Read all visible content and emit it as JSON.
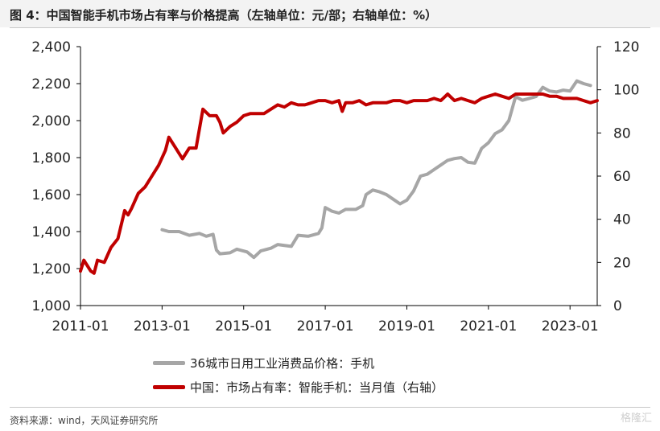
{
  "title": "图 4：中国智能手机市场占有率与价格提高（左轴单位：元/部；右轴单位：%）",
  "source": "资料来源：wind，天风证券研究所",
  "watermark": "格隆汇",
  "colors": {
    "gray_series": "#a6a6a6",
    "red_series": "#c00000"
  },
  "legend": {
    "gray_label": "36城市日用工业消费品价格：手机",
    "red_label": "中国：市场占有率：智能手机：当月值（右轴）"
  },
  "chart_data": {
    "type": "line",
    "x_tick_labels": [
      "2011-01",
      "2013-01",
      "2015-01",
      "2017-01",
      "2019-01",
      "2021-01",
      "2023-01"
    ],
    "y_left": {
      "ticks": [
        "1,000",
        "1,200",
        "1,400",
        "1,600",
        "1,800",
        "2,000",
        "2,200",
        "2,400"
      ],
      "ylim": [
        1000,
        2400
      ]
    },
    "y_right": {
      "ticks": [
        "0",
        "20",
        "40",
        "60",
        "80",
        "100",
        "120"
      ],
      "ylim": [
        0,
        120
      ]
    },
    "xlim": [
      "2011-01",
      "2023-09"
    ],
    "grid": false,
    "series": [
      {
        "name": "36城市日用工业消费品价格：手机",
        "axis": "left",
        "points": [
          [
            "2013-01",
            1410
          ],
          [
            "2013-03",
            1400
          ],
          [
            "2013-06",
            1400
          ],
          [
            "2013-09",
            1380
          ],
          [
            "2013-12",
            1390
          ],
          [
            "2014-02",
            1375
          ],
          [
            "2014-04",
            1385
          ],
          [
            "2014-05",
            1300
          ],
          [
            "2014-06",
            1280
          ],
          [
            "2014-09",
            1285
          ],
          [
            "2014-11",
            1305
          ],
          [
            "2015-02",
            1290
          ],
          [
            "2015-04",
            1260
          ],
          [
            "2015-06",
            1295
          ],
          [
            "2015-09",
            1310
          ],
          [
            "2015-11",
            1330
          ],
          [
            "2016-03",
            1320
          ],
          [
            "2016-05",
            1380
          ],
          [
            "2016-08",
            1375
          ],
          [
            "2016-11",
            1390
          ],
          [
            "2016-12",
            1420
          ],
          [
            "2017-01",
            1530
          ],
          [
            "2017-03",
            1510
          ],
          [
            "2017-05",
            1500
          ],
          [
            "2017-07",
            1520
          ],
          [
            "2017-10",
            1520
          ],
          [
            "2017-12",
            1540
          ],
          [
            "2018-01",
            1600
          ],
          [
            "2018-03",
            1625
          ],
          [
            "2018-05",
            1615
          ],
          [
            "2018-07",
            1600
          ],
          [
            "2018-09",
            1575
          ],
          [
            "2018-11",
            1550
          ],
          [
            "2019-01",
            1570
          ],
          [
            "2019-03",
            1620
          ],
          [
            "2019-05",
            1700
          ],
          [
            "2019-07",
            1710
          ],
          [
            "2019-09",
            1735
          ],
          [
            "2019-11",
            1760
          ],
          [
            "2020-01",
            1785
          ],
          [
            "2020-03",
            1795
          ],
          [
            "2020-05",
            1800
          ],
          [
            "2020-07",
            1775
          ],
          [
            "2020-09",
            1770
          ],
          [
            "2020-11",
            1850
          ],
          [
            "2021-01",
            1880
          ],
          [
            "2021-03",
            1930
          ],
          [
            "2021-05",
            1950
          ],
          [
            "2021-07",
            2000
          ],
          [
            "2021-09",
            2130
          ],
          [
            "2021-11",
            2110
          ],
          [
            "2022-01",
            2120
          ],
          [
            "2022-03",
            2130
          ],
          [
            "2022-05",
            2180
          ],
          [
            "2022-07",
            2160
          ],
          [
            "2022-09",
            2155
          ],
          [
            "2022-11",
            2165
          ],
          [
            "2023-01",
            2160
          ],
          [
            "2023-03",
            2215
          ],
          [
            "2023-05",
            2200
          ],
          [
            "2023-07",
            2190
          ]
        ]
      },
      {
        "name": "中国：市场占有率：智能手机：当月值（右轴）",
        "axis": "right",
        "points": [
          [
            "2011-01",
            16
          ],
          [
            "2011-02",
            21
          ],
          [
            "2011-04",
            16
          ],
          [
            "2011-05",
            15
          ],
          [
            "2011-06",
            21
          ],
          [
            "2011-08",
            20
          ],
          [
            "2011-10",
            27
          ],
          [
            "2011-12",
            31
          ],
          [
            "2012-02",
            44
          ],
          [
            "2012-03",
            42
          ],
          [
            "2012-04",
            45
          ],
          [
            "2012-06",
            52
          ],
          [
            "2012-08",
            55
          ],
          [
            "2012-10",
            60
          ],
          [
            "2012-12",
            65
          ],
          [
            "2013-02",
            72
          ],
          [
            "2013-03",
            78
          ],
          [
            "2013-05",
            73
          ],
          [
            "2013-07",
            68
          ],
          [
            "2013-09",
            73
          ],
          [
            "2013-11",
            73
          ],
          [
            "2014-01",
            91
          ],
          [
            "2014-03",
            88
          ],
          [
            "2014-05",
            88
          ],
          [
            "2014-06",
            85
          ],
          [
            "2014-07",
            80
          ],
          [
            "2014-09",
            83
          ],
          [
            "2014-11",
            85
          ],
          [
            "2015-01",
            88
          ],
          [
            "2015-03",
            89
          ],
          [
            "2015-05",
            89
          ],
          [
            "2015-07",
            89
          ],
          [
            "2015-09",
            91
          ],
          [
            "2015-11",
            93
          ],
          [
            "2016-01",
            92
          ],
          [
            "2016-03",
            94
          ],
          [
            "2016-05",
            93
          ],
          [
            "2016-07",
            93
          ],
          [
            "2016-09",
            94
          ],
          [
            "2016-11",
            95
          ],
          [
            "2017-01",
            95
          ],
          [
            "2017-03",
            94
          ],
          [
            "2017-05",
            95
          ],
          [
            "2017-06",
            90
          ],
          [
            "2017-07",
            94
          ],
          [
            "2017-09",
            94
          ],
          [
            "2017-11",
            95
          ],
          [
            "2018-01",
            93
          ],
          [
            "2018-03",
            94
          ],
          [
            "2018-05",
            94
          ],
          [
            "2018-07",
            94
          ],
          [
            "2018-09",
            95
          ],
          [
            "2018-11",
            95
          ],
          [
            "2019-01",
            94
          ],
          [
            "2019-03",
            95
          ],
          [
            "2019-05",
            95
          ],
          [
            "2019-07",
            95
          ],
          [
            "2019-09",
            96
          ],
          [
            "2019-11",
            95
          ],
          [
            "2020-01",
            98
          ],
          [
            "2020-03",
            95
          ],
          [
            "2020-05",
            96
          ],
          [
            "2020-07",
            95
          ],
          [
            "2020-09",
            94
          ],
          [
            "2020-11",
            96
          ],
          [
            "2021-01",
            97
          ],
          [
            "2021-03",
            98
          ],
          [
            "2021-05",
            97
          ],
          [
            "2021-07",
            96
          ],
          [
            "2021-09",
            98
          ],
          [
            "2021-11",
            98
          ],
          [
            "2022-01",
            98
          ],
          [
            "2022-03",
            98
          ],
          [
            "2022-05",
            98
          ],
          [
            "2022-07",
            97
          ],
          [
            "2022-09",
            97
          ],
          [
            "2022-11",
            96
          ],
          [
            "2023-01",
            96
          ],
          [
            "2023-03",
            96
          ],
          [
            "2023-05",
            95
          ],
          [
            "2023-07",
            94
          ],
          [
            "2023-09",
            95
          ]
        ]
      }
    ]
  }
}
